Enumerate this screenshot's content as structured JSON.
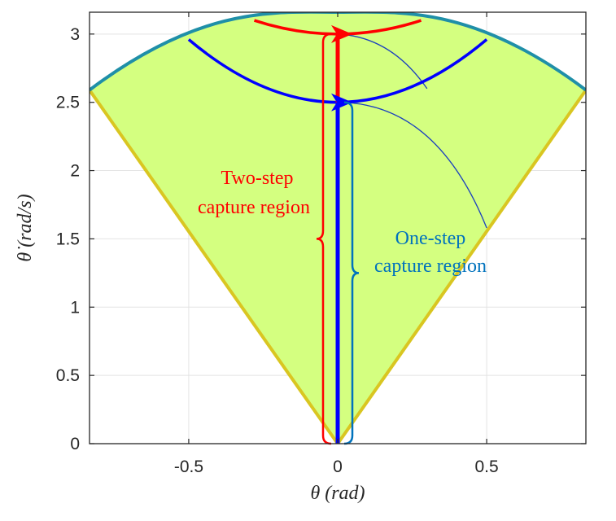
{
  "chart_data": {
    "type": "area",
    "xlabel": "θ (rad)",
    "ylabel": "θ̇ (rad/s)",
    "xlim": [
      -0.833,
      0.833
    ],
    "ylim": [
      0,
      3.16
    ],
    "x_ticks": [
      -0.5,
      0,
      0.5
    ],
    "x_tick_labels": [
      "-0.5",
      "0",
      "0.5"
    ],
    "y_ticks": [
      0,
      0.5,
      1,
      1.5,
      2,
      2.5,
      3
    ],
    "y_tick_labels": [
      "0",
      "0.5",
      "1",
      "1.5",
      "2",
      "2.5",
      "3"
    ],
    "grid": true,
    "colors": {
      "region_fill": "#d4ff80",
      "region_edge": "#d9c621",
      "top_arc": "#1f8fa8",
      "two_step": "#ff0000",
      "one_step": "#0000ff",
      "one_step_label": "#0072bd",
      "thin_curve": "#1a3fbf"
    },
    "series": [
      {
        "role": "region-left-edge",
        "x": [
          -0.833,
          0
        ],
        "y": [
          2.59,
          0
        ]
      },
      {
        "role": "region-right-edge",
        "x": [
          0,
          0.833
        ],
        "y": [
          0,
          2.59
        ]
      },
      {
        "role": "region-top-arc",
        "x": [
          -0.833,
          -0.5,
          0,
          0.5,
          0.833
        ],
        "y": [
          2.59,
          2.96,
          3.16,
          2.96,
          2.59
        ]
      },
      {
        "role": "two-step-vertical",
        "x": [
          0,
          0
        ],
        "y": [
          0,
          3.0
        ]
      },
      {
        "role": "one-step-vertical",
        "x": [
          0,
          0
        ],
        "y": [
          0,
          2.5
        ]
      },
      {
        "role": "two-step-arc",
        "x": [
          -0.28,
          0,
          0.28
        ],
        "y": [
          3.1,
          3.0,
          3.1
        ]
      },
      {
        "role": "one-step-arc",
        "x": [
          -0.5,
          0,
          0.5
        ],
        "y": [
          2.96,
          2.5,
          2.96
        ]
      },
      {
        "role": "thin-curve-upper",
        "x": [
          0,
          0.15,
          0.3
        ],
        "y": [
          3.0,
          2.85,
          2.6
        ]
      },
      {
        "role": "thin-curve-lower",
        "x": [
          0,
          0.25,
          0.5
        ],
        "y": [
          2.5,
          2.2,
          1.58
        ]
      }
    ],
    "annotations": [
      {
        "role": "two-step",
        "lines": [
          "Two-step",
          "capture region"
        ],
        "y_range": [
          0,
          3.0
        ]
      },
      {
        "role": "one-step",
        "lines": [
          "One-step",
          "capture region"
        ],
        "y_range": [
          0,
          2.5
        ]
      }
    ]
  }
}
